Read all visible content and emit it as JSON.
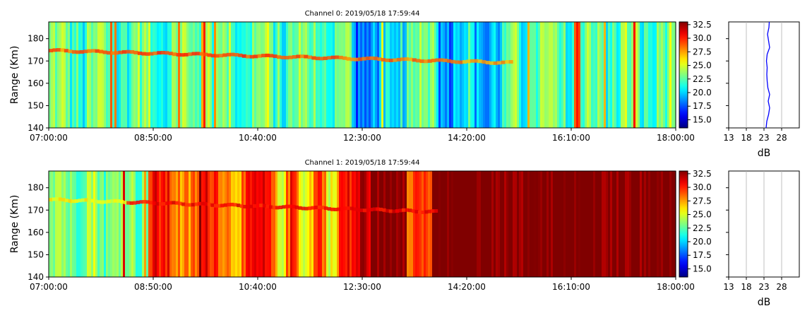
{
  "chart_data": [
    {
      "type": "heatmap",
      "title": "Channel 0: 2019/05/18 17:59:44",
      "ylabel": "Range (Km)",
      "x_ticks": [
        "07:00:00",
        "08:50:00",
        "10:40:00",
        "12:30:00",
        "14:20:00",
        "16:10:00",
        "18:00:00"
      ],
      "x_range": [
        "07:00:00",
        "18:00:00"
      ],
      "y_range": [
        140,
        187.5
      ],
      "y_ticks": [
        140,
        150,
        160,
        170,
        180
      ],
      "colormap": "jet",
      "color_range": [
        13.5,
        33
      ],
      "colorbar_ticks": [
        "15.0",
        "17.5",
        "20.0",
        "22.5",
        "25.0",
        "27.5",
        "30.0",
        "32.5"
      ],
      "profile": {
        "xlabel": "dB",
        "xlim": [
          13,
          33
        ],
        "x_ticks": [
          13,
          18,
          23,
          28
        ],
        "color": "#0000ff",
        "range_km": [
          140,
          143,
          146,
          149,
          152,
          155,
          158,
          161,
          164,
          167,
          170,
          173,
          176,
          179,
          182,
          185,
          187.5
        ],
        "db": [
          23.6,
          23.8,
          24.3,
          24.6,
          24.2,
          24.6,
          24.1,
          23.9,
          23.8,
          23.9,
          23.7,
          23.9,
          24.6,
          24.3,
          24.0,
          24.4,
          24.5
        ]
      }
    },
    {
      "type": "heatmap",
      "title": "Channel 1: 2019/05/18 17:59:44",
      "ylabel": "Range (Km)",
      "x_ticks": [
        "07:00:00",
        "08:50:00",
        "10:40:00",
        "12:30:00",
        "14:20:00",
        "16:10:00",
        "18:00:00"
      ],
      "x_range": [
        "07:00:00",
        "18:00:00"
      ],
      "y_range": [
        140,
        187.5
      ],
      "y_ticks": [
        140,
        150,
        160,
        170,
        180
      ],
      "colormap": "jet",
      "color_range": [
        13.5,
        33
      ],
      "colorbar_ticks": [
        "15.0",
        "17.5",
        "20.0",
        "22.5",
        "25.0",
        "27.5",
        "30.0",
        "32.5"
      ],
      "profile": {
        "xlabel": "dB",
        "xlim": [
          13,
          33
        ],
        "x_ticks": [
          13,
          18,
          23,
          28
        ],
        "range_km": [],
        "db": []
      }
    }
  ]
}
